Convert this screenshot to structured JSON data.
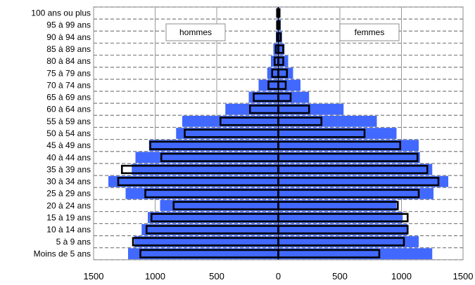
{
  "chart_data": {
    "type": "bar",
    "orientation": "horizontal",
    "title": "",
    "xlabel": "",
    "ylabel": "",
    "xlim": [
      -1500,
      1500
    ],
    "x_tick_labels": [
      "1500",
      "1000",
      "500",
      "0",
      "500",
      "1000",
      "1500"
    ],
    "grid": true,
    "categories": [
      "Moins de 5 ans",
      "5 à 9 ans",
      "10 à 14 ans",
      "15 à 19 ans",
      "20 à 24 ans",
      "25 à 29 ans",
      "30 à 34 ans",
      "35 à 39 ans",
      "40 à 44 ans",
      "45 à 49 ans",
      "50 à 54 ans",
      "55 à 59 ans",
      "60 à 64 ans",
      "65 à 69 ans",
      "70 à 74 ans",
      "75 à 79 ans",
      "80 à 84 ans",
      "85 à 89 ans",
      "90 à 94 ans",
      "95 à 99 ans",
      "100 ans ou plus"
    ],
    "panel_labels": {
      "left": "hommes",
      "right": "femmes"
    },
    "series": [
      {
        "style": "filled",
        "color": "#4169FF",
        "hommes": [
          1220,
          1170,
          1110,
          1060,
          960,
          1240,
          1380,
          1190,
          1160,
          1050,
          830,
          780,
          430,
          240,
          160,
          90,
          60,
          40,
          20,
          10,
          10
        ],
        "femmes": [
          1250,
          1140,
          1050,
          1010,
          960,
          1260,
          1380,
          1250,
          1150,
          1140,
          960,
          800,
          530,
          250,
          180,
          120,
          80,
          50,
          30,
          20,
          10
        ]
      },
      {
        "style": "outline",
        "color": "#000000",
        "hommes": [
          1120,
          1180,
          1070,
          1030,
          850,
          1080,
          1300,
          1270,
          950,
          1040,
          760,
          470,
          230,
          200,
          80,
          50,
          30,
          20,
          10,
          10,
          10
        ],
        "femmes": [
          820,
          1020,
          1050,
          1050,
          970,
          1140,
          1300,
          1210,
          1130,
          990,
          700,
          350,
          250,
          100,
          60,
          70,
          40,
          40,
          20,
          10,
          10
        ]
      }
    ]
  }
}
